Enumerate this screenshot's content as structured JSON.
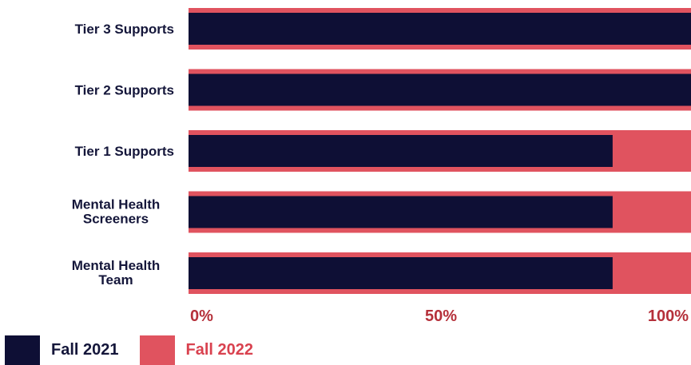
{
  "chart_data": {
    "type": "bar",
    "orientation": "horizontal",
    "categories": [
      [
        "Tier 3 Supports"
      ],
      [
        "Tier 2 Supports"
      ],
      [
        "Tier 1 Supports"
      ],
      [
        "Mental Health",
        "Screeners"
      ],
      [
        "Mental Health",
        "Team"
      ]
    ],
    "series": [
      {
        "name": "Fall 2022",
        "values": [
          100,
          100,
          100,
          100,
          100
        ]
      },
      {
        "name": "Fall 2021",
        "values": [
          100,
          100,
          84,
          84,
          84
        ]
      }
    ],
    "x_ticks": [
      "0%",
      "50%",
      "100%"
    ],
    "xlim": [
      0,
      100
    ],
    "grid": false,
    "legend_position": "bottom-left",
    "colors": {
      "Fall 2021": "#0e0f35",
      "Fall 2022": "#e0535f",
      "tick": "#b5303a",
      "label": "#14163a"
    }
  },
  "legend": [
    {
      "label": "Fall 2021",
      "color": "#0e0f35"
    },
    {
      "label": "Fall 2022",
      "color": "#e0535f"
    }
  ]
}
